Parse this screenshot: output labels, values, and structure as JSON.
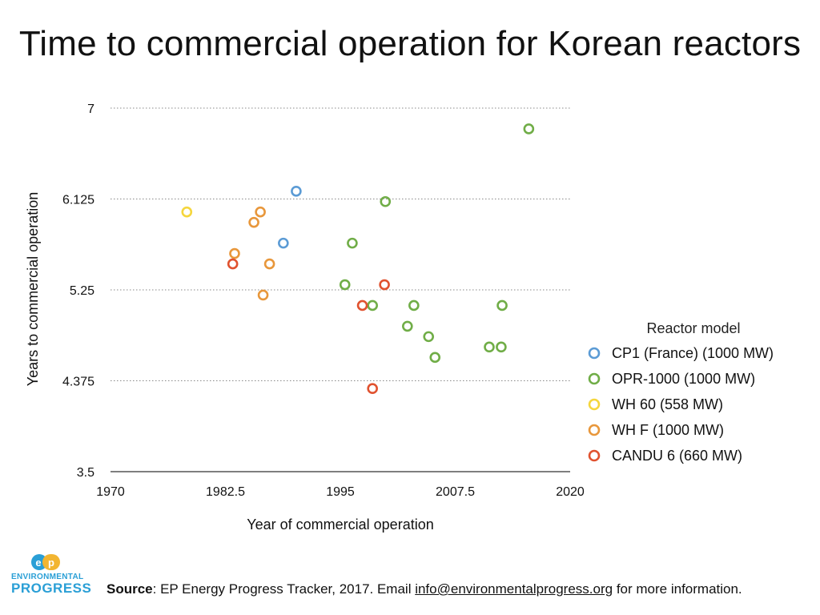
{
  "chart_data": {
    "type": "scatter",
    "title": "Time to commercial operation for Korean reactors",
    "xlabel": "Year of commercial operation",
    "ylabel": "Years to commercial operation",
    "xlim": [
      1970,
      2020
    ],
    "ylim": [
      3.5,
      7
    ],
    "x_ticks": [
      "1970",
      "1982.5",
      "1995",
      "2007.5",
      "2020"
    ],
    "y_ticks": [
      "3.5",
      "4.375",
      "5.25",
      "6.125",
      "7"
    ],
    "grid": "horizontal-dotted",
    "legend_title": "Reactor model",
    "legend_position": "right",
    "series": [
      {
        "name": "CP1 (France) (1000 MW)",
        "color": "#5b9bd5",
        "points": [
          [
            1988.8,
            5.7
          ],
          [
            1990.2,
            6.2
          ]
        ]
      },
      {
        "name": "OPR-1000 (1000 MW)",
        "color": "#70ad47",
        "points": [
          [
            1995.5,
            5.3
          ],
          [
            1996.3,
            5.7
          ],
          [
            1998.5,
            5.1
          ],
          [
            1999.9,
            6.1
          ],
          [
            2002.3,
            4.9
          ],
          [
            2003.0,
            5.1
          ],
          [
            2004.6,
            4.8
          ],
          [
            2005.3,
            4.6
          ],
          [
            2011.2,
            4.7
          ],
          [
            2012.5,
            4.7
          ],
          [
            2012.6,
            5.1
          ],
          [
            2015.5,
            6.8
          ]
        ]
      },
      {
        "name": "WH 60 (558 MW)",
        "color": "#f5d63d",
        "points": [
          [
            1978.3,
            6.0
          ]
        ]
      },
      {
        "name": "WH F (1000 MW)",
        "color": "#e8973b",
        "points": [
          [
            1983.5,
            5.6
          ],
          [
            1985.6,
            5.9
          ],
          [
            1986.3,
            6.0
          ],
          [
            1986.6,
            5.2
          ],
          [
            1987.3,
            5.5
          ]
        ]
      },
      {
        "name": "CANDU 6 (660 MW)",
        "color": "#e0522f",
        "points": [
          [
            1983.3,
            5.5
          ],
          [
            1997.4,
            5.1
          ],
          [
            1998.5,
            4.3
          ],
          [
            1999.8,
            5.3
          ]
        ]
      }
    ]
  },
  "footer": {
    "source_label": "Source",
    "source_text": ": EP Energy Progress Tracker, 2017. Email ",
    "email": "info@environmentalprogress.org",
    "tail": " for more information."
  },
  "logo": {
    "line1": "ENVIRONMENTAL",
    "line2": "PROGRESS",
    "brand_color": "#2a9fd6"
  }
}
